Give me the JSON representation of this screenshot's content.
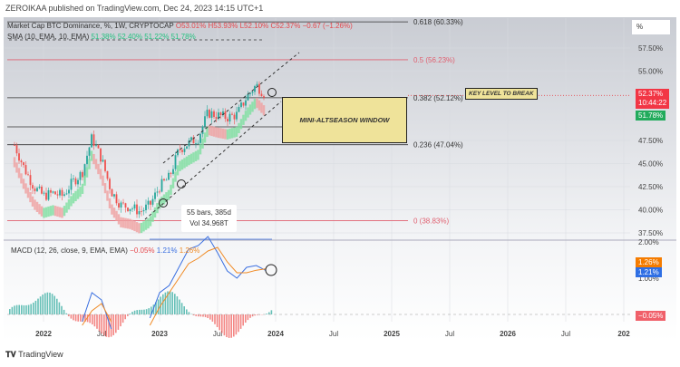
{
  "header": {
    "published": "ZEROIKAA published on TradingView.com, Dec 24, 2023 14:15 UTC+1"
  },
  "legend": {
    "symbol": "Market Cap BTC Dominance, %, 1W, CRYPTOCAP",
    "o": "O53.01%",
    "h": "H53.93%",
    "l": "L52.10%",
    "c": "C52.37%",
    "chg": "−0.67 (−1.26%)",
    "sma_label": "SMA (10, EMA, 10, EMA)",
    "sma_vals": "51.38%  52.40%  51.22%  51.78%"
  },
  "macd_legend": {
    "label": "MACD (12, 26, close, 9, EMA, EMA)",
    "hist": "−0.05%",
    "macd": "1.21%",
    "signal": "1.26%"
  },
  "annotations": {
    "window": "MINI-ALTSEASON WINDOW",
    "key": "KEY LEVEL TO BREAK",
    "bars": "55 bars, 385d",
    "vol": "Vol 34.968T"
  },
  "tags": {
    "unit": "%",
    "price": "52.37%",
    "countdown": "10:44:22",
    "ema": "51.78%",
    "macd_signal": "1.26%",
    "macd": "1.21%",
    "hist": "−0.05%"
  },
  "footer": {
    "brand": "TradingView"
  },
  "colors": {
    "up": "#26a69a",
    "down": "#ef5350",
    "macd": "#3a6fe0",
    "signal": "#f08a24",
    "fib_red": "#e06070"
  },
  "chart_data": [
    {
      "type": "candlestick",
      "title": "Market Cap BTC Dominance, %, 1W",
      "ylim": [
        37.5,
        60.5
      ],
      "yticks": [
        "57.50%",
        "55.00%",
        "47.50%",
        "45.00%",
        "42.50%",
        "40.00%",
        "37.50%"
      ],
      "xticks": [
        "2022",
        "Jul",
        "2023",
        "Jul",
        "2024",
        "Jul",
        "2025",
        "Jul",
        "2026",
        "Jul",
        "202"
      ],
      "monthly_close": {
        "x": [
          "2021-10",
          "2021-11",
          "2021-12",
          "2022-01",
          "2022-02",
          "2022-03",
          "2022-04",
          "2022-05",
          "2022-06",
          "2022-07",
          "2022-08",
          "2022-09",
          "2022-10",
          "2022-11",
          "2022-12",
          "2023-01",
          "2023-02",
          "2023-03",
          "2023-04",
          "2023-05",
          "2023-06",
          "2023-07",
          "2023-08",
          "2023-09",
          "2023-10",
          "2023-11",
          "2023-12"
        ],
        "y": [
          47,
          44.5,
          42.5,
          41.5,
          41.8,
          41.5,
          43,
          44,
          47.8,
          45.5,
          42,
          40.5,
          40.3,
          39.8,
          40.5,
          42.5,
          43.5,
          46.5,
          47.2,
          47.8,
          50.5,
          50.2,
          50,
          50.3,
          52.2,
          53.5,
          52.37
        ]
      },
      "fib_levels": [
        {
          "label": "0.618 (60.33%)",
          "value": 60.33
        },
        {
          "label": "0.5 (56.23%)",
          "value": 56.23
        },
        {
          "label": "0.382 (52.12%)",
          "value": 52.12
        },
        {
          "label": "0.236 (47.04%)",
          "value": 47.04
        },
        {
          "label": "0 (38.83%)",
          "value": 38.83
        }
      ]
    },
    {
      "type": "line",
      "title": "MACD (12, 26, close, 9, EMA, EMA)",
      "yticks": [
        "2.00%",
        "1.00%"
      ],
      "x": [
        "2022-05",
        "2022-06",
        "2022-07",
        "2022-08",
        "2022-11",
        "2022-12",
        "2023-01",
        "2023-02",
        "2023-03",
        "2023-04",
        "2023-05",
        "2023-06",
        "2023-07",
        "2023-08",
        "2023-09",
        "2023-10",
        "2023-11",
        "2023-12"
      ],
      "series": [
        {
          "name": "MACD",
          "values": [
            -0.2,
            0.6,
            0.4,
            -0.4,
            null,
            -0.1,
            0.6,
            0.8,
            1.3,
            1.8,
            1.9,
            2.15,
            1.7,
            1.2,
            1.0,
            1.3,
            1.35,
            1.21
          ]
        },
        {
          "name": "Signal",
          "values": [
            -0.3,
            0.1,
            0.3,
            -0.2,
            null,
            -0.3,
            0.2,
            0.6,
            1.0,
            1.4,
            1.55,
            1.75,
            1.85,
            1.45,
            1.15,
            1.15,
            1.22,
            1.26
          ]
        }
      ]
    }
  ]
}
